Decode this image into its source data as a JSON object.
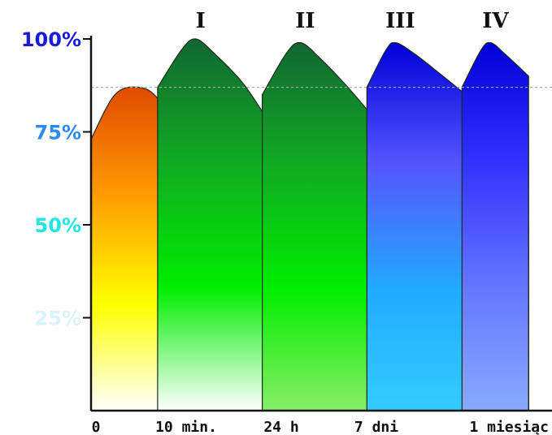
{
  "chart_data": {
    "type": "area",
    "title": "",
    "xlabel": "",
    "ylabel": "",
    "ylim": [
      0,
      100
    ],
    "grid": false,
    "y_ticks": [
      {
        "label": "100%",
        "value": 100,
        "color": "#1a1adc"
      },
      {
        "label": "75%",
        "value": 75,
        "color": "#2a8cf0"
      },
      {
        "label": "50%",
        "value": 50,
        "color": "#22e6e6"
      },
      {
        "label": "25%",
        "value": 25,
        "color": "#d8f4fa"
      }
    ],
    "x_ticks": [
      {
        "label": "0",
        "x": 0
      },
      {
        "label": "10 min.",
        "x": 1
      },
      {
        "label": "24 h",
        "x": 2
      },
      {
        "label": "7 dni",
        "x": 3
      },
      {
        "label": "1 miesiąc",
        "x": 4
      }
    ],
    "reference_line": 87,
    "repetitions": [
      {
        "label": "I",
        "x": 1.1
      },
      {
        "label": "II",
        "x": 2.2
      },
      {
        "label": "III",
        "x": 3.2
      },
      {
        "label": "IV",
        "x": 4.2
      }
    ],
    "series": [
      {
        "x": [
          0,
          0.25,
          0.5,
          0.7,
          0.9,
          1.2,
          1.6,
          2.0,
          2.5,
          3.0,
          3.5,
          4.0,
          4.6
        ],
        "values": [
          73,
          85,
          87,
          84,
          74,
          55,
          41,
          31,
          23,
          17,
          13,
          10,
          8
        ],
        "colors": [
          "#e04a00",
          "#ff9a00",
          "#ffff00",
          "#ffffff"
        ]
      },
      {
        "x": [
          0.7,
          0.95,
          1.1,
          1.3,
          1.6,
          1.9,
          2.3,
          2.7,
          3.2,
          3.7,
          4.2,
          4.6
        ],
        "values": [
          87,
          97,
          100,
          96,
          88,
          77,
          66,
          55,
          44,
          37,
          32,
          29
        ],
        "colors": [
          "#116633",
          "#11aa22",
          "#00ee00",
          "#ffffff"
        ]
      },
      {
        "x": [
          1.8,
          2.05,
          2.2,
          2.4,
          2.7,
          3.0,
          3.3,
          3.7,
          4.1,
          4.6
        ],
        "values": [
          85,
          96,
          99,
          95,
          87,
          78,
          69,
          60,
          54,
          49
        ],
        "colors": [
          "#116633",
          "#11aa22",
          "#00ee00",
          "#88ee66"
        ]
      },
      {
        "x": [
          2.9,
          3.1,
          3.2,
          3.4,
          3.7,
          4.0,
          4.3,
          4.6
        ],
        "values": [
          87,
          97,
          99,
          96,
          90,
          84,
          80,
          77
        ],
        "colors": [
          "#0000d8",
          "#5555ff",
          "#22aaff",
          "#33ccff"
        ]
      },
      {
        "x": [
          3.9,
          4.1,
          4.2,
          4.35,
          4.6
        ],
        "values": [
          87,
          97,
          99,
          96,
          90
        ],
        "colors": [
          "#0000d8",
          "#3333ff",
          "#6677ff",
          "#88aaff"
        ]
      }
    ]
  }
}
